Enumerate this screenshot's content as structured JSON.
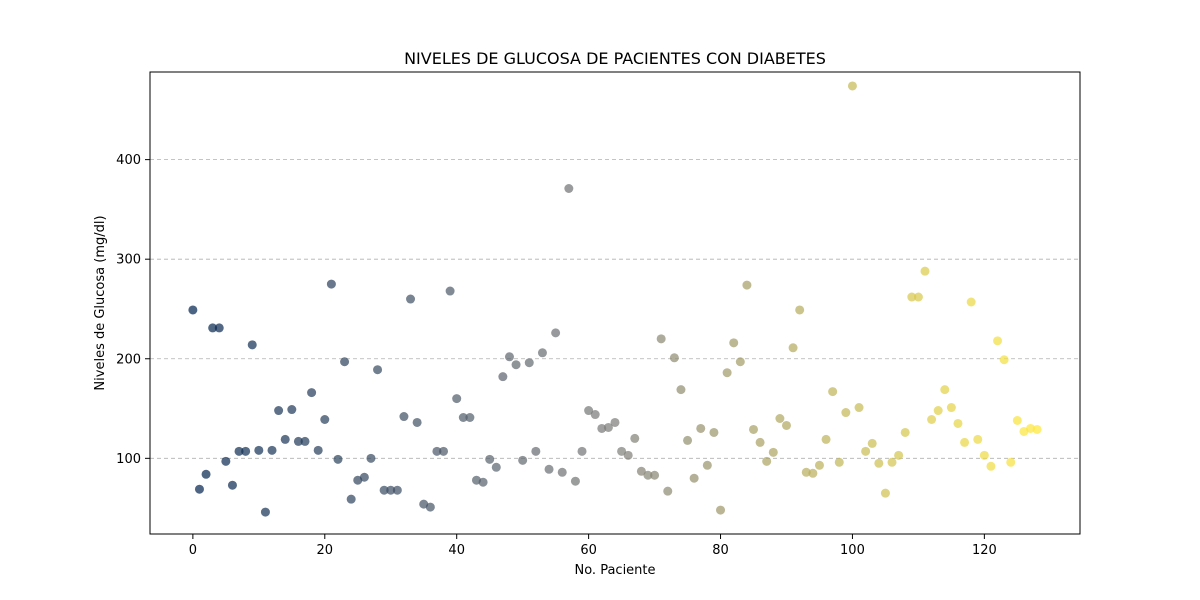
{
  "chart_data": {
    "type": "scatter",
    "title": "NIVELES DE GLUCOSA DE PACIENTES CON DIABETES",
    "xlabel": "No. Paciente",
    "ylabel": "Niveles de Glucosa (mg/dl)",
    "xlim": [
      -6.5,
      134.5
    ],
    "ylim": [
      24,
      488
    ],
    "xticks": [
      0,
      20,
      40,
      60,
      80,
      100,
      120
    ],
    "yticks": [
      100,
      200,
      300,
      400
    ],
    "grid": "y-dashed",
    "colormap": "cividis",
    "color_start": "#00224e",
    "color_mid": "#7c7b78",
    "color_end": "#fee838",
    "points": [
      [
        0,
        249
      ],
      [
        1,
        69
      ],
      [
        2,
        84
      ],
      [
        3,
        231
      ],
      [
        4,
        231
      ],
      [
        5,
        97
      ],
      [
        6,
        73
      ],
      [
        7,
        107
      ],
      [
        8,
        107
      ],
      [
        9,
        214
      ],
      [
        10,
        108
      ],
      [
        11,
        46
      ],
      [
        12,
        108
      ],
      [
        13,
        148
      ],
      [
        14,
        119
      ],
      [
        15,
        149
      ],
      [
        16,
        117
      ],
      [
        17,
        117
      ],
      [
        18,
        166
      ],
      [
        19,
        108
      ],
      [
        20,
        139
      ],
      [
        21,
        275
      ],
      [
        22,
        99
      ],
      [
        23,
        197
      ],
      [
        24,
        59
      ],
      [
        25,
        78
      ],
      [
        26,
        81
      ],
      [
        27,
        100
      ],
      [
        28,
        189
      ],
      [
        29,
        68
      ],
      [
        30,
        68
      ],
      [
        31,
        68
      ],
      [
        32,
        142
      ],
      [
        33,
        260
      ],
      [
        34,
        136
      ],
      [
        35,
        54
      ],
      [
        36,
        51
      ],
      [
        37,
        107
      ],
      [
        38,
        107
      ],
      [
        39,
        268
      ],
      [
        40,
        160
      ],
      [
        41,
        141
      ],
      [
        42,
        141
      ],
      [
        43,
        78
      ],
      [
        44,
        76
      ],
      [
        45,
        99
      ],
      [
        46,
        91
      ],
      [
        47,
        182
      ],
      [
        48,
        202
      ],
      [
        49,
        194
      ],
      [
        50,
        98
      ],
      [
        51,
        196
      ],
      [
        52,
        107
      ],
      [
        53,
        206
      ],
      [
        54,
        89
      ],
      [
        55,
        226
      ],
      [
        56,
        86
      ],
      [
        57,
        371
      ],
      [
        58,
        77
      ],
      [
        59,
        107
      ],
      [
        60,
        148
      ],
      [
        61,
        144
      ],
      [
        62,
        130
      ],
      [
        63,
        131
      ],
      [
        64,
        136
      ],
      [
        65,
        107
      ],
      [
        66,
        103
      ],
      [
        67,
        120
      ],
      [
        68,
        87
      ],
      [
        69,
        83
      ],
      [
        70,
        83
      ],
      [
        71,
        220
      ],
      [
        72,
        67
      ],
      [
        73,
        201
      ],
      [
        74,
        169
      ],
      [
        75,
        118
      ],
      [
        76,
        80
      ],
      [
        77,
        130
      ],
      [
        78,
        93
      ],
      [
        79,
        126
      ],
      [
        80,
        48
      ],
      [
        81,
        186
      ],
      [
        82,
        216
      ],
      [
        83,
        197
      ],
      [
        84,
        274
      ],
      [
        85,
        129
      ],
      [
        86,
        116
      ],
      [
        87,
        97
      ],
      [
        88,
        106
      ],
      [
        89,
        140
      ],
      [
        90,
        133
      ],
      [
        91,
        211
      ],
      [
        92,
        249
      ],
      [
        93,
        86
      ],
      [
        94,
        85
      ],
      [
        95,
        93
      ],
      [
        96,
        119
      ],
      [
        97,
        167
      ],
      [
        98,
        96
      ],
      [
        99,
        146
      ],
      [
        100,
        474
      ],
      [
        101,
        151
      ],
      [
        102,
        107
      ],
      [
        103,
        115
      ],
      [
        104,
        95
      ],
      [
        105,
        65
      ],
      [
        106,
        96
      ],
      [
        107,
        103
      ],
      [
        108,
        126
      ],
      [
        109,
        262
      ],
      [
        110,
        262
      ],
      [
        111,
        288
      ],
      [
        112,
        139
      ],
      [
        113,
        148
      ],
      [
        114,
        169
      ],
      [
        115,
        151
      ],
      [
        116,
        135
      ],
      [
        117,
        116
      ],
      [
        118,
        257
      ],
      [
        119,
        119
      ],
      [
        120,
        103
      ],
      [
        121,
        92
      ],
      [
        122,
        218
      ],
      [
        123,
        199
      ],
      [
        124,
        96
      ],
      [
        125,
        138
      ],
      [
        126,
        127
      ],
      [
        127,
        130
      ],
      [
        128,
        129
      ]
    ]
  }
}
